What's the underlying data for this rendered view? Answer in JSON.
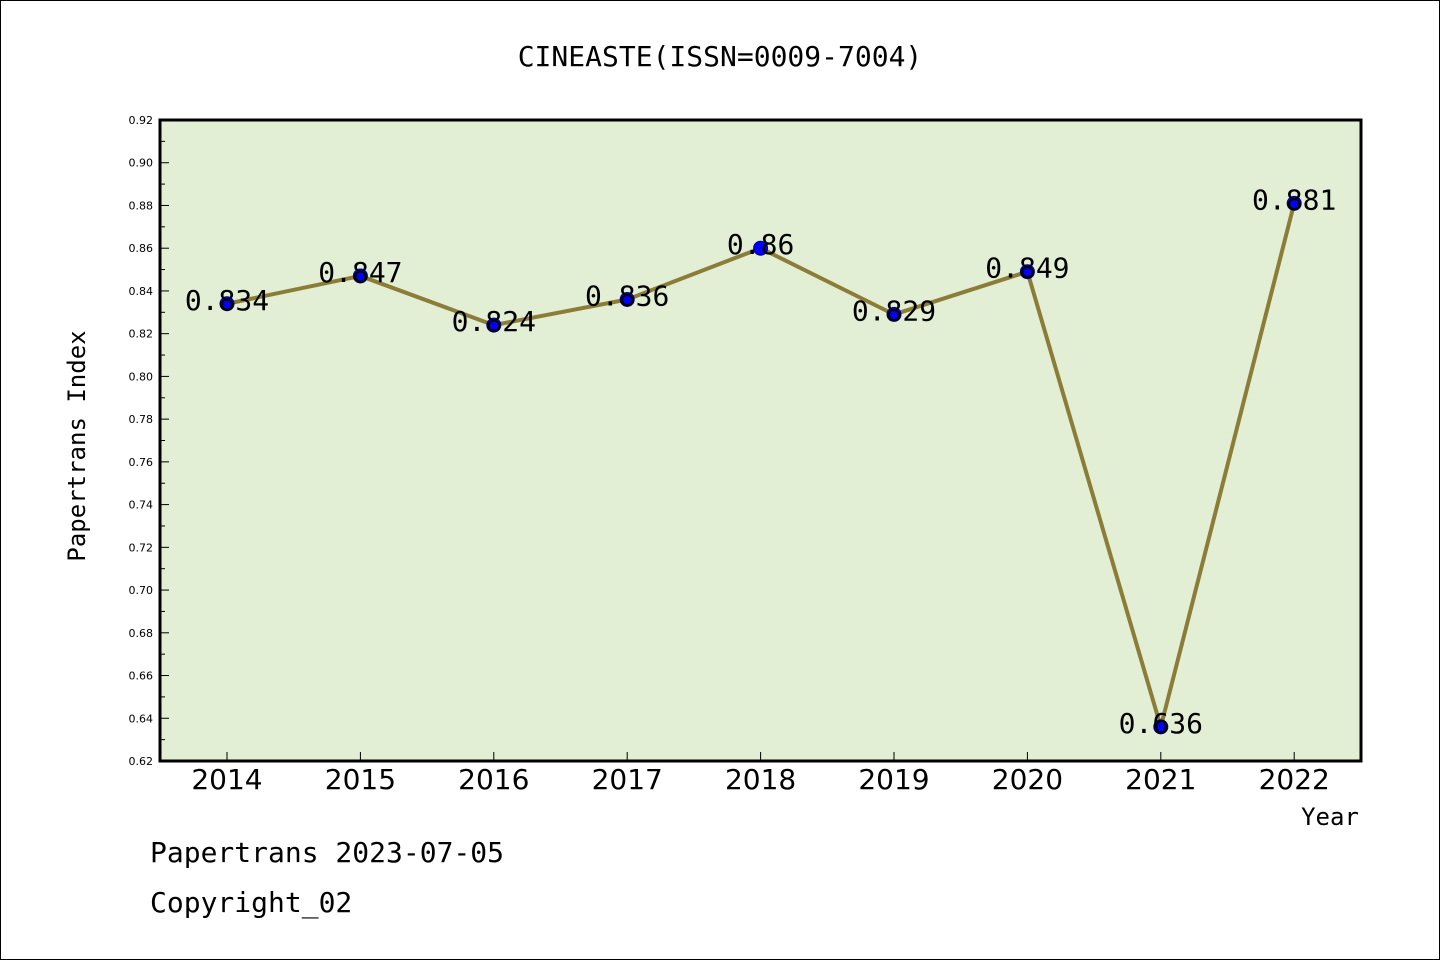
{
  "chart_data": {
    "type": "line",
    "title": "CINEASTE(ISSN=0009-7004)",
    "xlabel": "Year",
    "ylabel": "Papertrans Index",
    "categories": [
      "2014",
      "2015",
      "2016",
      "2017",
      "2018",
      "2019",
      "2020",
      "2021",
      "2022"
    ],
    "values": [
      0.834,
      0.847,
      0.824,
      0.836,
      0.86,
      0.829,
      0.849,
      0.636,
      0.881
    ],
    "data_labels": [
      "0.834",
      "0.847",
      "0.824",
      "0.836",
      "0.86",
      "0.829",
      "0.849",
      "0.636",
      "0.881"
    ],
    "ylim": [
      0.62,
      0.92
    ],
    "yticks": [
      "0.62",
      "0.64",
      "0.66",
      "0.68",
      "0.70",
      "0.72",
      "0.74",
      "0.76",
      "0.78",
      "0.80",
      "0.82",
      "0.84",
      "0.86",
      "0.88",
      "0.90",
      "0.92"
    ],
    "grid": false,
    "legend": "none",
    "colors": {
      "plot_background": "#e2efd5",
      "line": "#8b7d37",
      "marker": "#0000ff",
      "axis": "#000000"
    }
  },
  "footer": {
    "line1": "Papertrans 2023-07-05",
    "line2": "Copyright_02"
  }
}
